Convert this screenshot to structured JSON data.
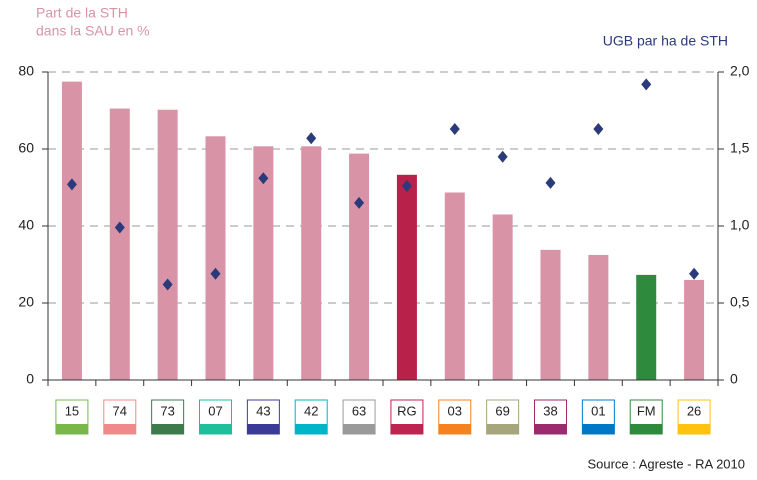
{
  "chart_data": {
    "type": "bar",
    "ylabel": [
      "Part de la STH",
      "dans la SAU en %"
    ],
    "y2label": "UGB par ha de STH",
    "source": "Source : Agreste - RA 2010",
    "categories": [
      "15",
      "74",
      "73",
      "07",
      "43",
      "42",
      "63",
      "RG",
      "03",
      "69",
      "38",
      "01",
      "FM",
      "26"
    ],
    "category_colors": [
      "#7ab648",
      "#f08a8a",
      "#3d7a4c",
      "#1fbf9c",
      "#3b3a98",
      "#00b5c8",
      "#9a9a9a",
      "#be2450",
      "#f5821f",
      "#a6a57c",
      "#9b2a6e",
      "#0078c8",
      "#2e8b3e",
      "#ffc20e"
    ],
    "series": [
      {
        "type": "bar",
        "colors": [
          "#d993a6",
          "#d993a6",
          "#d993a6",
          "#d993a6",
          "#d993a6",
          "#d993a6",
          "#d993a6",
          "#b8224a",
          "#d993a6",
          "#d993a6",
          "#d993a6",
          "#d993a6",
          "#2e8b3e",
          "#d993a6"
        ],
        "values": [
          77.5,
          70.5,
          70.2,
          63.3,
          60.7,
          60.7,
          58.8,
          53.3,
          48.7,
          43.0,
          33.8,
          32.5,
          27.3,
          26.0
        ]
      },
      {
        "type": "scatter",
        "axis": "y2",
        "color": "#2b3a7a",
        "values": [
          1.27,
          0.99,
          0.62,
          0.69,
          1.31,
          1.57,
          1.15,
          1.26,
          1.63,
          1.45,
          1.28,
          1.63,
          1.92,
          0.69
        ]
      }
    ],
    "ylim": [
      0,
      80
    ],
    "yticks": [
      0,
      20,
      40,
      60,
      80
    ],
    "y2lim": [
      0,
      2
    ],
    "y2ticks": [
      0,
      {
        "value": 0.5,
        "label": "0,5"
      },
      {
        "value": 1,
        "label": "1,0"
      },
      {
        "value": 1.5,
        "label": "1,5"
      },
      {
        "value": 2,
        "label": "2,0"
      }
    ],
    "grid": true
  }
}
